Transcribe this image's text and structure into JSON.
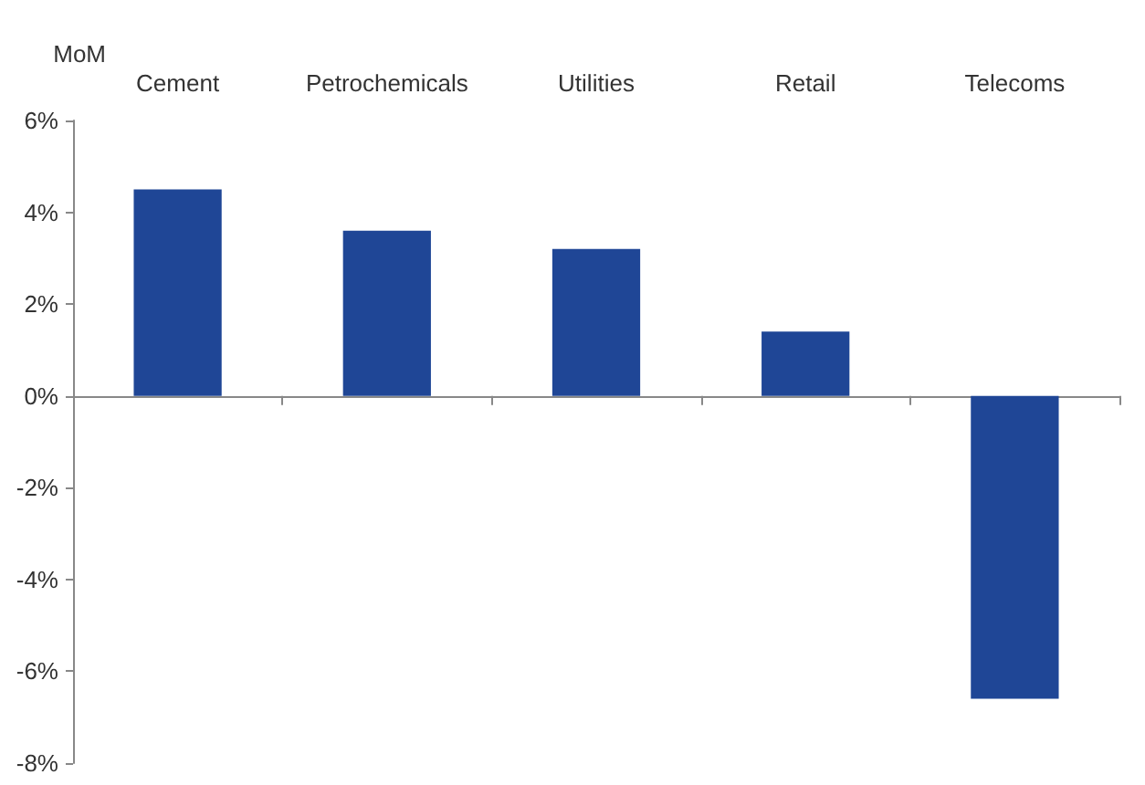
{
  "chart_data": {
    "type": "bar",
    "ylabel": "MoM",
    "categories": [
      "Cement",
      "Petrochemicals",
      "Utilities",
      "Retail",
      "Telecoms"
    ],
    "values": [
      4.5,
      3.6,
      3.2,
      1.4,
      -6.6
    ],
    "color": "#1f4696",
    "ylim": [
      -8,
      6
    ],
    "yticks": [
      {
        "value": -8,
        "label": "-8%"
      },
      {
        "value": -6,
        "label": "-6%"
      },
      {
        "value": -4,
        "label": "-4%"
      },
      {
        "value": -2,
        "label": "-2%"
      },
      {
        "value": 0,
        "label": "0%"
      },
      {
        "value": 2,
        "label": "2%"
      },
      {
        "value": 4,
        "label": "4%"
      },
      {
        "value": 6,
        "label": "6%"
      }
    ],
    "data_labels": false
  }
}
